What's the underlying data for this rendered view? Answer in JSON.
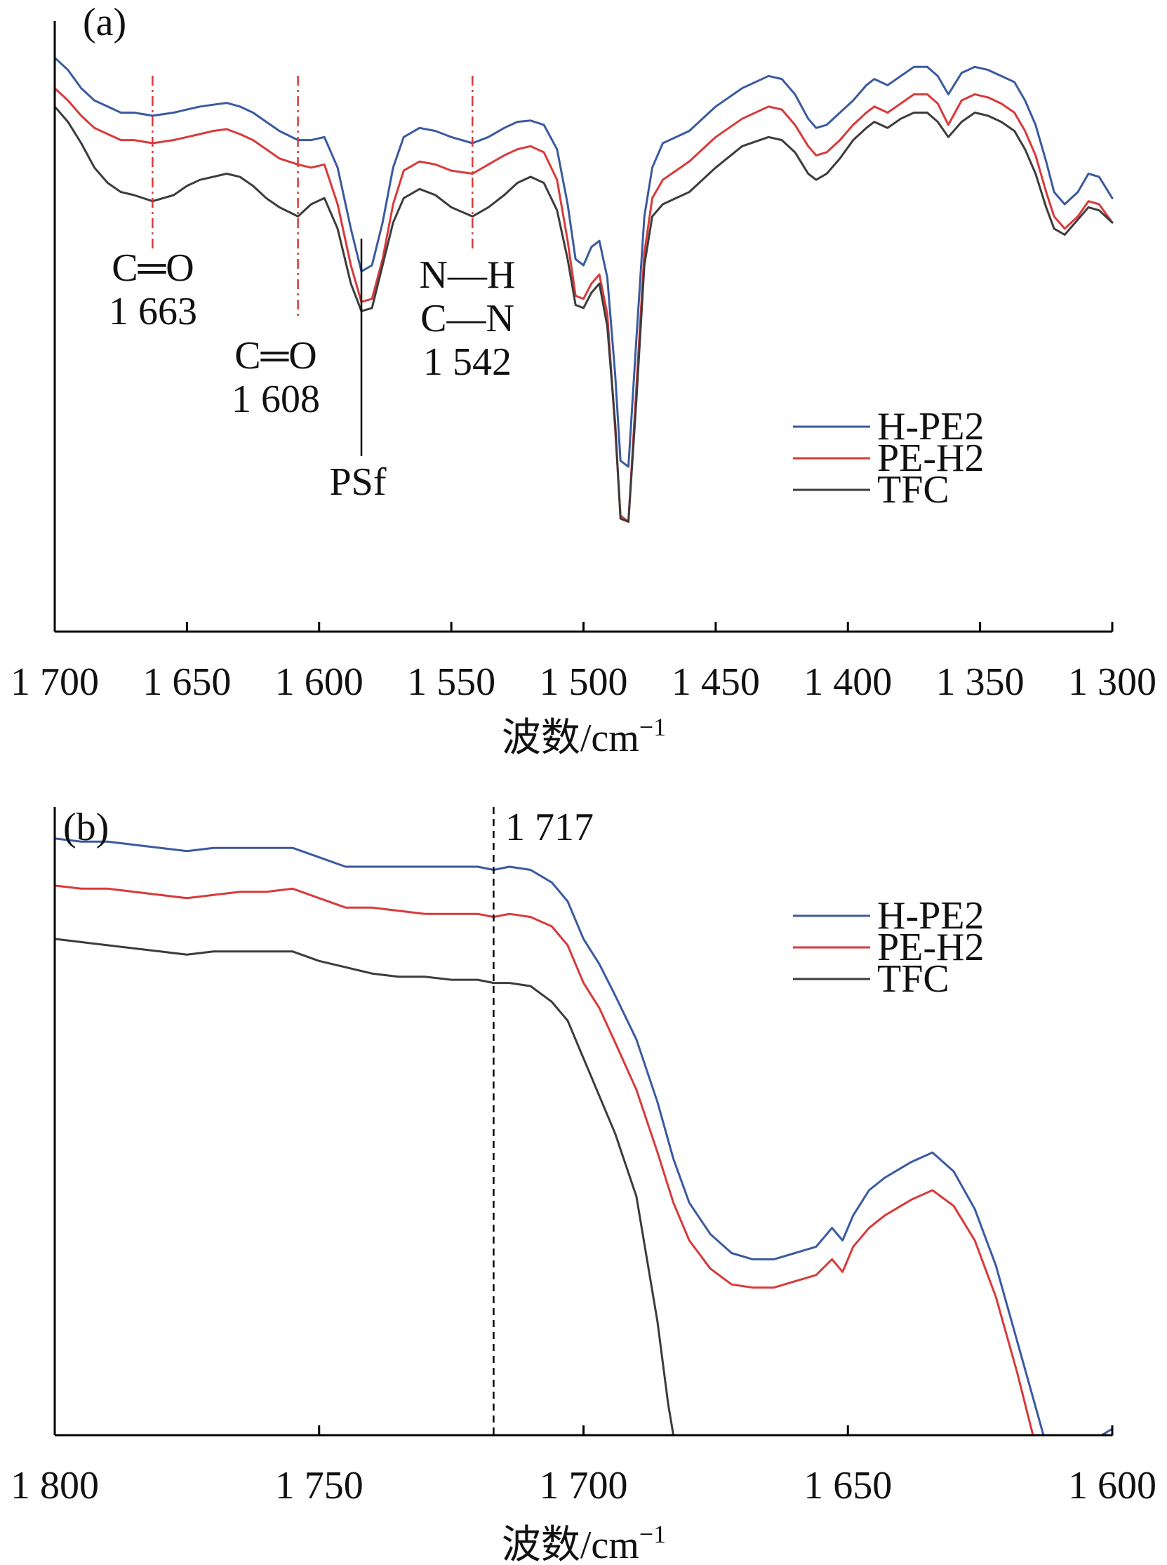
{
  "colors": {
    "H-PE2": "#3a5aa0",
    "PE-H2": "#d93a3a",
    "TFC": "#3c3c3c",
    "ref_line": "#d93a3a"
  },
  "chart_data": [
    {
      "panel": "(a)",
      "type": "line",
      "xlabel": "波数/cm",
      "xlabel_sup": "−1",
      "xlim": [
        1700,
        1300
      ],
      "x_ticks": [
        1700,
        1650,
        1600,
        1550,
        1500,
        1450,
        1400,
        1350,
        1300
      ],
      "x_tick_labels": [
        "1 700",
        "1 650",
        "1 600",
        "1 550",
        "1 500",
        "1 450",
        "1 400",
        "1 350",
        "1 300"
      ],
      "ylim": [
        0,
        100
      ],
      "legend": {
        "position": "right-middle",
        "entries": [
          "H-PE2",
          "PE-H2",
          "TFC"
        ]
      },
      "series": [
        {
          "name": "H-PE2",
          "x": [
            1700,
            1695,
            1690,
            1685,
            1680,
            1675,
            1670,
            1663,
            1655,
            1650,
            1645,
            1640,
            1635,
            1630,
            1625,
            1620,
            1615,
            1608,
            1603,
            1598,
            1593,
            1588,
            1584,
            1580,
            1576,
            1572,
            1568,
            1562,
            1556,
            1550,
            1542,
            1536,
            1530,
            1525,
            1520,
            1515,
            1510,
            1506,
            1503,
            1500,
            1497,
            1494,
            1491,
            1488,
            1486,
            1483,
            1480,
            1477,
            1474,
            1470,
            1460,
            1450,
            1440,
            1430,
            1425,
            1420,
            1415,
            1412,
            1408,
            1403,
            1398,
            1393,
            1390,
            1385,
            1380,
            1375,
            1370,
            1366,
            1362,
            1357,
            1352,
            1347,
            1342,
            1337,
            1333,
            1329,
            1325,
            1322,
            1318,
            1313,
            1309,
            1305,
            1300
          ],
          "y": [
            94,
            92,
            89,
            87,
            86,
            85,
            85,
            84.5,
            85,
            85.5,
            86,
            86.3,
            86.6,
            86,
            85,
            83.5,
            82,
            80.5,
            80.5,
            81,
            76,
            66,
            59,
            60,
            67,
            76,
            81,
            82.5,
            82,
            81,
            80,
            81,
            82.5,
            83.5,
            83.7,
            83,
            79,
            70,
            61,
            60,
            63,
            64,
            58,
            42,
            28,
            27,
            48,
            68,
            76,
            80,
            82,
            86,
            89,
            91,
            90.5,
            88,
            84,
            82.5,
            83,
            85,
            87,
            89.5,
            90.5,
            89.5,
            91,
            92.5,
            92.5,
            91,
            88,
            91.5,
            92.5,
            92,
            91,
            90,
            87,
            83,
            77,
            72,
            70,
            72,
            75,
            74.5,
            71
          ]
        },
        {
          "name": "PE-H2",
          "x": [
            1700,
            1695,
            1690,
            1685,
            1680,
            1675,
            1670,
            1663,
            1655,
            1650,
            1645,
            1640,
            1635,
            1630,
            1625,
            1620,
            1615,
            1608,
            1603,
            1598,
            1593,
            1588,
            1584,
            1580,
            1576,
            1572,
            1568,
            1562,
            1556,
            1550,
            1542,
            1536,
            1530,
            1525,
            1520,
            1515,
            1510,
            1506,
            1503,
            1500,
            1497,
            1494,
            1491,
            1488,
            1486,
            1483,
            1480,
            1477,
            1474,
            1470,
            1460,
            1450,
            1440,
            1430,
            1425,
            1420,
            1415,
            1412,
            1408,
            1403,
            1398,
            1393,
            1390,
            1385,
            1380,
            1375,
            1370,
            1366,
            1362,
            1357,
            1352,
            1347,
            1342,
            1337,
            1333,
            1329,
            1325,
            1322,
            1318,
            1313,
            1309,
            1305,
            1300
          ],
          "y": [
            89,
            87,
            84.5,
            82.5,
            81.5,
            80.5,
            80.5,
            80,
            80.5,
            81,
            81.5,
            82,
            82.3,
            81.5,
            80.5,
            79,
            77.5,
            76.5,
            76,
            76.5,
            70,
            60,
            54,
            54.5,
            61,
            70,
            75.5,
            77,
            76.5,
            75.5,
            75,
            76.5,
            78,
            79,
            79.5,
            78.5,
            74,
            64,
            55,
            54.5,
            57,
            58.5,
            52,
            33,
            19,
            18,
            40,
            62,
            71,
            74,
            77,
            81,
            84,
            86,
            85.5,
            83,
            79.5,
            78,
            78.5,
            80.5,
            83,
            85,
            86,
            85,
            86.5,
            88,
            88,
            86.5,
            83,
            87,
            88,
            87.5,
            86.5,
            85,
            82,
            78,
            72,
            68,
            66,
            68,
            70.5,
            70,
            67
          ]
        },
        {
          "name": "TFC",
          "x": [
            1700,
            1695,
            1690,
            1685,
            1680,
            1675,
            1670,
            1663,
            1655,
            1650,
            1645,
            1640,
            1635,
            1630,
            1625,
            1620,
            1615,
            1608,
            1603,
            1598,
            1593,
            1588,
            1584,
            1580,
            1576,
            1572,
            1568,
            1562,
            1556,
            1550,
            1542,
            1536,
            1530,
            1525,
            1520,
            1515,
            1510,
            1506,
            1503,
            1500,
            1497,
            1494,
            1491,
            1488,
            1486,
            1483,
            1480,
            1477,
            1474,
            1470,
            1460,
            1450,
            1440,
            1430,
            1425,
            1420,
            1415,
            1412,
            1408,
            1403,
            1398,
            1393,
            1390,
            1385,
            1380,
            1375,
            1370,
            1366,
            1362,
            1357,
            1352,
            1347,
            1342,
            1337,
            1333,
            1329,
            1325,
            1322,
            1318,
            1313,
            1309,
            1305,
            1300
          ],
          "y": [
            86,
            83.5,
            80,
            76,
            73.5,
            72,
            71.5,
            70.5,
            71.5,
            73,
            74,
            74.5,
            75,
            74.5,
            73,
            71,
            69.5,
            68,
            70,
            71,
            66,
            57,
            52.5,
            53,
            60,
            67,
            71,
            72.5,
            71.5,
            69.5,
            68,
            69.5,
            71.5,
            73.5,
            74.5,
            73.5,
            69,
            61,
            53.5,
            53,
            55.5,
            57,
            50,
            34,
            18.5,
            18,
            38,
            60,
            68,
            70,
            72,
            76,
            79.5,
            81,
            80.5,
            78.5,
            75,
            74,
            75,
            77.5,
            80.5,
            82.5,
            83.5,
            82.5,
            84,
            85,
            85,
            83.5,
            81,
            83.5,
            85,
            84.5,
            83.5,
            82,
            79,
            75,
            69.5,
            66,
            65,
            67.5,
            69.5,
            69,
            67
          ]
        }
      ],
      "ref_lines": [
        {
          "x": 1663,
          "style": "dash-dot",
          "color": "#d93a3a",
          "label_lines": [
            "C═O",
            "1 663"
          ]
        },
        {
          "x": 1608,
          "style": "dash-dot",
          "color": "#d93a3a",
          "label_lines": [
            "C═O",
            "1 608"
          ]
        },
        {
          "x": 1542,
          "style": "dash-dot",
          "color": "#d93a3a",
          "label_lines": [
            "N—H",
            "C—N",
            "1 542"
          ]
        },
        {
          "x": 1584,
          "style": "solid",
          "color": "#000000",
          "label_lines": [
            "PSf"
          ]
        }
      ]
    },
    {
      "panel": "(b)",
      "type": "line",
      "xlabel": "波数/cm",
      "xlabel_sup": "−1",
      "xlim": [
        1800,
        1600
      ],
      "x_ticks": [
        1800,
        1750,
        1700,
        1650,
        1600
      ],
      "x_tick_labels": [
        "1 800",
        "1 750",
        "1 700",
        "1 650",
        "1 600"
      ],
      "ylim": [
        0,
        100
      ],
      "legend": {
        "position": "top-right",
        "entries": [
          "H-PE2",
          "PE-H2",
          "TFC"
        ]
      },
      "series": [
        {
          "name": "H-PE2",
          "x": [
            1800,
            1795,
            1790,
            1785,
            1780,
            1775,
            1770,
            1765,
            1760,
            1755,
            1750,
            1745,
            1740,
            1735,
            1730,
            1725,
            1720,
            1717,
            1714,
            1710,
            1706,
            1703,
            1700,
            1697,
            1694,
            1690,
            1686,
            1683,
            1680,
            1676,
            1672,
            1668,
            1664,
            1660,
            1656,
            1653,
            1651,
            1649,
            1646,
            1643,
            1638,
            1634,
            1630,
            1626,
            1622,
            1618,
            1615,
            1613,
            1611,
            1602,
            1600
          ],
          "y": [
            95,
            94.5,
            94.5,
            94,
            93.5,
            93,
            93.5,
            93.5,
            93.5,
            93.5,
            92,
            90.5,
            90.5,
            90.5,
            90.5,
            90.5,
            90.5,
            90,
            90.5,
            90,
            88,
            85,
            79,
            75,
            70,
            63,
            53,
            44,
            37,
            32,
            29,
            28,
            28,
            29,
            30,
            33,
            31,
            35,
            39,
            41,
            43.5,
            45,
            42,
            36,
            27,
            15,
            6,
            0,
            0,
            0,
            1
          ]
        },
        {
          "name": "PE-H2",
          "x": [
            1800,
            1795,
            1790,
            1785,
            1780,
            1775,
            1770,
            1765,
            1760,
            1755,
            1750,
            1745,
            1740,
            1735,
            1730,
            1725,
            1720,
            1717,
            1714,
            1710,
            1706,
            1703,
            1700,
            1697,
            1694,
            1690,
            1686,
            1683,
            1680,
            1676,
            1672,
            1668,
            1664,
            1660,
            1656,
            1653,
            1651,
            1649,
            1646,
            1643,
            1638,
            1634,
            1630,
            1626,
            1622,
            1618,
            1615,
            1613,
            1611,
            1602,
            1600
          ],
          "y": [
            87.5,
            87,
            87,
            86.5,
            86,
            85.5,
            86,
            86.5,
            86.5,
            87,
            85.5,
            84,
            84,
            83.5,
            83,
            83,
            83,
            82.5,
            83,
            82.5,
            81,
            78,
            72,
            68,
            62.5,
            55,
            45,
            37,
            31,
            26.5,
            24,
            23.5,
            23.5,
            24.5,
            25.5,
            28,
            26,
            30,
            33,
            35,
            37.5,
            39,
            36.5,
            31,
            22,
            10,
            0,
            0,
            0,
            0,
            0
          ]
        },
        {
          "name": "TFC",
          "x": [
            1800,
            1795,
            1790,
            1785,
            1780,
            1775,
            1770,
            1765,
            1760,
            1755,
            1750,
            1745,
            1740,
            1735,
            1730,
            1725,
            1720,
            1717,
            1714,
            1710,
            1706,
            1703,
            1700,
            1697,
            1694,
            1690,
            1686,
            1684,
            1683
          ],
          "y": [
            79,
            78.5,
            78,
            77.5,
            77,
            76.5,
            77,
            77,
            77,
            77,
            75.5,
            74.5,
            73.5,
            73,
            73,
            72.5,
            72.5,
            72,
            72,
            71.5,
            69,
            66,
            60,
            54,
            48,
            38,
            18,
            5,
            0
          ]
        }
      ],
      "ref_lines": [
        {
          "x": 1717,
          "style": "dashed",
          "color": "#000000",
          "label_lines": [
            "1 717"
          ]
        }
      ]
    }
  ]
}
